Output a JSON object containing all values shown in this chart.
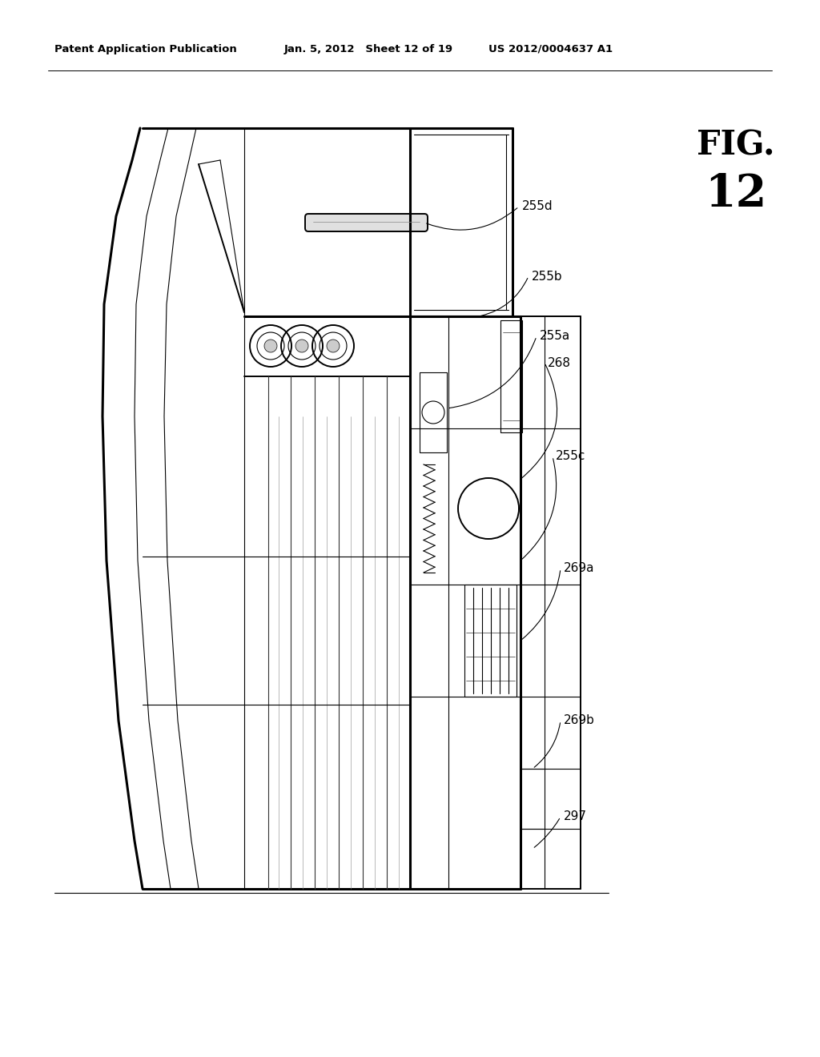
{
  "bg_color": "#ffffff",
  "header_left": "Patent Application Publication",
  "header_mid": "Jan. 5, 2012   Sheet 12 of 19",
  "header_right": "US 2012/0004637 A1",
  "fig_label": "FIG. 12",
  "line_color": "#000000",
  "lw_thick": 2.2,
  "lw_main": 1.4,
  "lw_thin": 0.8,
  "lw_hair": 0.4
}
